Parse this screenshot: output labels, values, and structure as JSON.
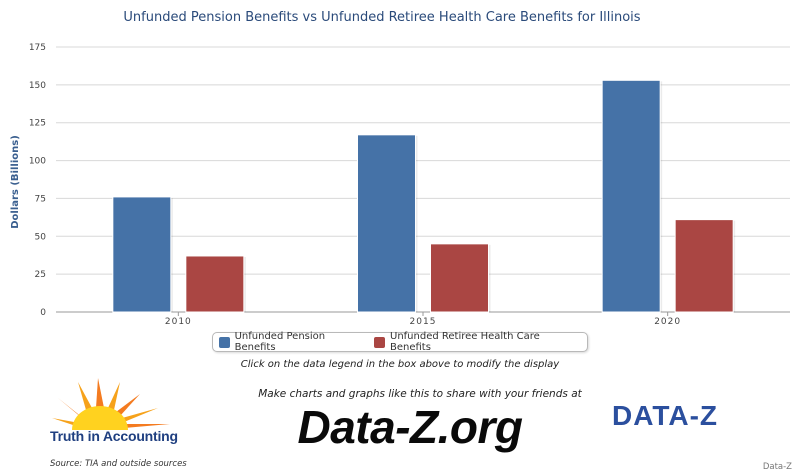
{
  "chart_data": {
    "type": "bar",
    "title": "Unfunded Pension Benefits vs Unfunded Retiree Health Care Benefits for Illinois",
    "ylabel": "Dollars (Billions)",
    "xlabel": "",
    "categories": [
      "2010",
      "2015",
      "2020"
    ],
    "ylim": [
      0,
      175
    ],
    "yticks": [
      0,
      25,
      50,
      75,
      100,
      125,
      150,
      175
    ],
    "grid": true,
    "legend": "bottom",
    "series": [
      {
        "name": "Unfunded Pension Benefits",
        "color": "#4572a7",
        "values": [
          76,
          117,
          153
        ]
      },
      {
        "name": "Unfunded Retiree Health Care Benefits",
        "color": "#aa4643",
        "values": [
          37,
          45,
          61
        ]
      }
    ]
  },
  "legend_labels": [
    "Unfunded Pension Benefits",
    "Unfunded Retiree Health Care Benefits"
  ],
  "legend_colors": [
    "#4572a7",
    "#aa4643"
  ],
  "hint": "Click on the data legend in the box above to modify the display",
  "cta": "Make charts and graphs like this to share with your friends at",
  "brand": "Data-Z.org",
  "tia_name": "Truth in Accounting",
  "dz_logo": "DATA-Z",
  "source": "Source: TIA and outside sources",
  "credit": "Data-Z"
}
